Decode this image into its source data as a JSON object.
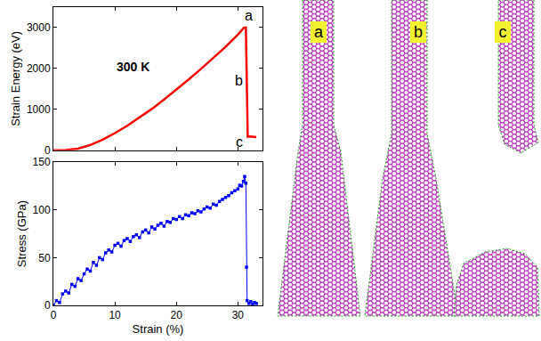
{
  "chart_data": [
    {
      "type": "line",
      "ylabel": "Strain Energy (eV)",
      "color": "#ff0000",
      "line_style": "solid",
      "x": [
        0,
        2,
        4,
        6,
        8,
        10,
        12,
        14,
        16,
        18,
        20,
        22,
        24,
        26,
        28,
        30,
        31,
        31.3,
        31.4,
        31.6,
        32,
        33
      ],
      "values": [
        0,
        5,
        40,
        130,
        260,
        420,
        600,
        800,
        1010,
        1240,
        1480,
        1730,
        1990,
        2260,
        2530,
        2830,
        3000,
        3000,
        1950,
        330,
        340,
        320
      ],
      "xlim": [
        0,
        34
      ],
      "ylim": [
        0,
        3500
      ],
      "xticks": [
        0,
        10,
        20,
        30
      ],
      "yticks": [
        0,
        1000,
        2000,
        3000
      ],
      "tick_labels": "y",
      "annotations": [
        {
          "text": "300 K",
          "x": 10,
          "y": 2050
        },
        {
          "text": "a",
          "x": 31.7,
          "y": 3300
        },
        {
          "text": "b",
          "x": 30.2,
          "y": 1700
        },
        {
          "text": "c",
          "x": 30.2,
          "y": 200
        }
      ]
    },
    {
      "type": "line",
      "xlabel": "Strain (%)",
      "ylabel": "Stress (GPa)",
      "color": "#0000ff",
      "marker": "square",
      "line_style": "solid",
      "x": [
        0,
        0.5,
        1,
        1.5,
        2,
        2.5,
        3,
        3.5,
        4,
        4.5,
        5,
        5.5,
        6,
        6.5,
        7,
        7.5,
        8,
        8.5,
        9,
        9.5,
        10,
        10.5,
        11,
        11.5,
        12,
        12.5,
        13,
        13.5,
        14,
        14.5,
        15,
        15.5,
        16,
        16.5,
        17,
        17.5,
        18,
        18.5,
        19,
        19.5,
        20,
        20.5,
        21,
        21.5,
        22,
        22.5,
        23,
        23.5,
        24,
        24.5,
        25,
        25.5,
        26,
        26.5,
        27,
        27.5,
        28,
        28.5,
        29,
        29.5,
        30,
        30.3,
        30.6,
        30.9,
        31.1,
        31.3,
        31.4,
        31.5,
        31.8,
        32.1,
        32.4,
        32.7,
        33
      ],
      "values": [
        0,
        5,
        3,
        12,
        15,
        13,
        22,
        20,
        28,
        26,
        33,
        38,
        36,
        45,
        42,
        50,
        48,
        55,
        58,
        56,
        63,
        65,
        62,
        68,
        70,
        67,
        72,
        74,
        71,
        77,
        79,
        76,
        82,
        80,
        84,
        86,
        83,
        88,
        87,
        91,
        90,
        93,
        91,
        95,
        94,
        97,
        96,
        99,
        98,
        101,
        103,
        102,
        106,
        105,
        109,
        111,
        113,
        115,
        118,
        120,
        122,
        126,
        125,
        130,
        135,
        128,
        40,
        5,
        2,
        4,
        1,
        3,
        2
      ],
      "xlim": [
        0,
        34
      ],
      "ylim": [
        0,
        150
      ],
      "xticks": [
        0,
        10,
        20,
        30
      ],
      "yticks": [
        0,
        50,
        100,
        150
      ]
    }
  ],
  "snapshots": {
    "labels": [
      "a",
      "b",
      "c"
    ]
  }
}
